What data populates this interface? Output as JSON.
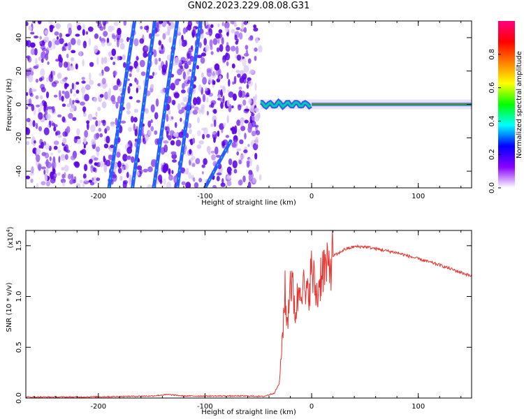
{
  "title": "GN02.2023.229.08.08.G31",
  "colors": {
    "axis": "#000000",
    "snr_line": "#e8302c",
    "noise_dark": "#5a00e6",
    "noise_light": "#d8c4f6",
    "streak": "#2a5cff",
    "streak_core": "#18d8d8"
  },
  "chart_data": [
    {
      "type": "heatmap",
      "title": "GN02.2023.229.08.08.G31",
      "xlabel": "Height of straight line (km)",
      "ylabel": "Frequency (Hz)",
      "xlim": [
        -268,
        150
      ],
      "ylim": [
        -50,
        50
      ],
      "x_ticks": [
        -200,
        -100,
        0,
        100
      ],
      "x_tick_labels": [
        "-200",
        "-100",
        "0",
        "100"
      ],
      "y_ticks": [
        -40,
        -20,
        0,
        20,
        40
      ],
      "y_tick_labels": [
        "-40",
        "-20",
        "0",
        "20",
        "40"
      ],
      "noise_region_x": [
        -268,
        -48
      ],
      "signal_region_x": [
        -48,
        150
      ],
      "signal_frequency": 0,
      "streaks": [
        {
          "x": [
            -190,
            -166
          ],
          "y": [
            -50,
            50
          ]
        },
        {
          "x": [
            -168,
            -147
          ],
          "y": [
            -50,
            50
          ]
        },
        {
          "x": [
            -148,
            -126
          ],
          "y": [
            -50,
            50
          ]
        },
        {
          "x": [
            -126,
            -104
          ],
          "y": [
            -50,
            50
          ]
        },
        {
          "x": [
            -100,
            -76
          ],
          "y": [
            -50,
            -22
          ]
        }
      ],
      "colorbar": {
        "label": "Normalized spectral amplitude",
        "range": [
          0,
          1
        ],
        "ticks": [
          0.0,
          0.2,
          0.4,
          0.6,
          0.8
        ],
        "tick_labels": [
          "0.0",
          "0.2",
          "0.4",
          "0.6",
          "0.8"
        ],
        "colors": [
          "#ffffff",
          "#8a00ff",
          "#0000ff",
          "#00ffff",
          "#00ff00",
          "#ffff00",
          "#ff8000",
          "#ff0000",
          "#ff0080"
        ]
      }
    },
    {
      "type": "line",
      "xlabel": "Height of straight line (km)",
      "ylabel": "SNR (10 * v/v)",
      "y_scale_label": "(x10",
      "y_scale_exponent": "4",
      "y_scale_suffix": ")",
      "xlim": [
        -268,
        150
      ],
      "ylim": [
        0,
        1.65
      ],
      "x_ticks": [
        -200,
        -100,
        0,
        100
      ],
      "x_tick_labels": [
        "-200",
        "-100",
        "0",
        "100"
      ],
      "y_ticks": [
        0.0,
        0.5,
        1.0,
        1.5
      ],
      "y_tick_labels": [
        "0.0",
        "0.5",
        "1.0",
        "1.5"
      ],
      "series": [
        {
          "x": [
            -268,
            -220,
            -180,
            -150,
            -135,
            -120,
            -100,
            -80,
            -60,
            -45,
            -35,
            -30,
            -28,
            -25,
            -23,
            -20,
            -15,
            -10,
            -5,
            0,
            5,
            10,
            15,
            20,
            25,
            30,
            40,
            50,
            60,
            80,
            100,
            120,
            150
          ],
          "y": [
            0.01,
            0.01,
            0.015,
            0.02,
            0.035,
            0.02,
            0.02,
            0.02,
            0.02,
            0.015,
            0.05,
            0.15,
            0.5,
            1.05,
            0.7,
            1.2,
            0.85,
            1.2,
            0.95,
            1.25,
            1.0,
            1.3,
            1.25,
            1.4,
            1.42,
            1.46,
            1.49,
            1.49,
            1.47,
            1.43,
            1.37,
            1.31,
            1.2
          ]
        }
      ]
    }
  ]
}
